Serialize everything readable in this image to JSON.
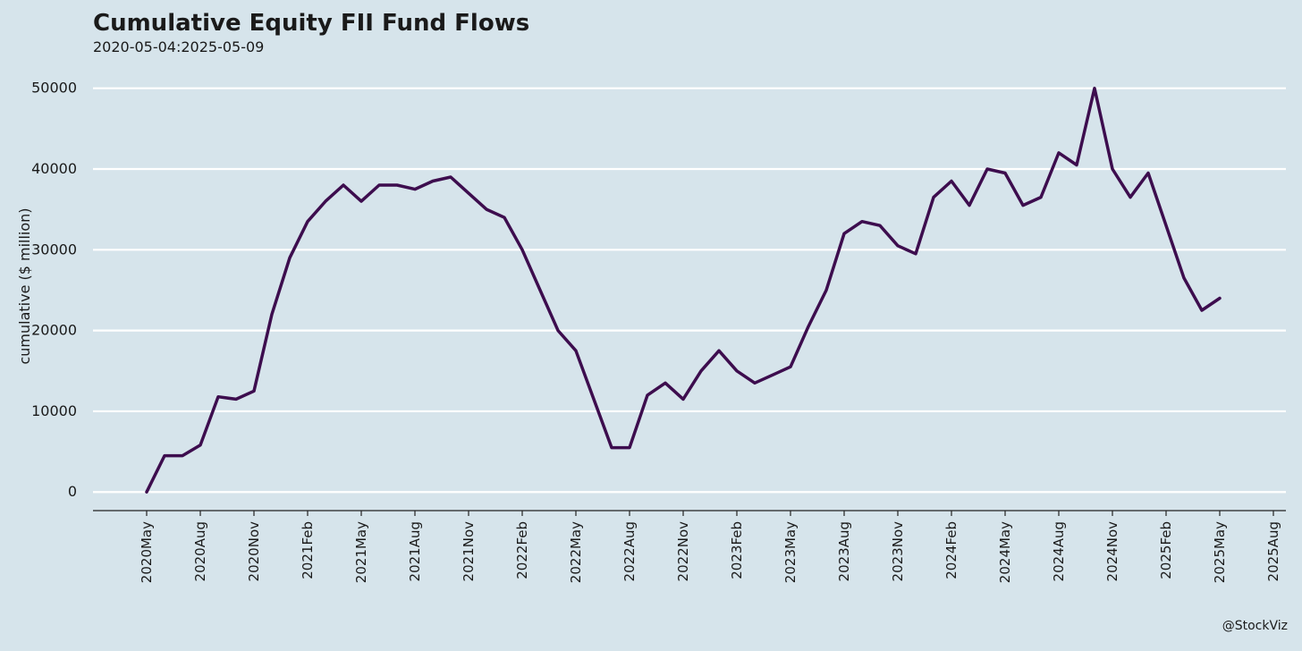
{
  "chart_data": {
    "type": "line",
    "title": "Cumulative Equity FII Fund Flows",
    "subtitle": "2020-05-04:2025-05-09",
    "y_label": "cumulative ($ million)",
    "caption": "@StockViz",
    "grid": true,
    "x": [
      "2020-05",
      "2020-06",
      "2020-07",
      "2020-08",
      "2020-09",
      "2020-10",
      "2020-11",
      "2020-12",
      "2021-01",
      "2021-02",
      "2021-03",
      "2021-04",
      "2021-05",
      "2021-06",
      "2021-07",
      "2021-08",
      "2021-09",
      "2021-10",
      "2021-11",
      "2021-12",
      "2022-01",
      "2022-02",
      "2022-03",
      "2022-04",
      "2022-05",
      "2022-06",
      "2022-07",
      "2022-08",
      "2022-09",
      "2022-10",
      "2022-11",
      "2022-12",
      "2023-01",
      "2023-02",
      "2023-03",
      "2023-04",
      "2023-05",
      "2023-06",
      "2023-07",
      "2023-08",
      "2023-09",
      "2023-10",
      "2023-11",
      "2023-12",
      "2024-01",
      "2024-02",
      "2024-03",
      "2024-04",
      "2024-05",
      "2024-06",
      "2024-07",
      "2024-08",
      "2024-09",
      "2024-10",
      "2024-11",
      "2024-12",
      "2025-01",
      "2025-02",
      "2025-03",
      "2025-04",
      "2025-05"
    ],
    "series": [
      {
        "name": "cumulative",
        "color": "#3d0d4e",
        "values": [
          0,
          4500,
          4500,
          5800,
          11800,
          11500,
          12500,
          22000,
          29000,
          33500,
          36000,
          38000,
          36000,
          38000,
          38000,
          37500,
          38500,
          39000,
          37000,
          35000,
          34000,
          30000,
          25000,
          20000,
          17500,
          11500,
          5500,
          5500,
          12000,
          13500,
          11500,
          15000,
          17500,
          15000,
          13500,
          14500,
          15500,
          20500,
          25000,
          32000,
          33500,
          33000,
          30500,
          29500,
          36500,
          38500,
          35500,
          40000,
          39500,
          35500,
          36500,
          42000,
          40500,
          50000,
          40000,
          36500,
          39500,
          33000,
          26500,
          22500,
          24000
        ]
      }
    ],
    "xlim": [
      "2020-02",
      "2025-09"
    ],
    "xticks": [
      {
        "value": "2020-05",
        "label": "2020May"
      },
      {
        "value": "2020-08",
        "label": "2020Aug"
      },
      {
        "value": "2020-11",
        "label": "2020Nov"
      },
      {
        "value": "2021-02",
        "label": "2021Feb"
      },
      {
        "value": "2021-05",
        "label": "2021May"
      },
      {
        "value": "2021-08",
        "label": "2021Aug"
      },
      {
        "value": "2021-11",
        "label": "2021Nov"
      },
      {
        "value": "2022-02",
        "label": "2022Feb"
      },
      {
        "value": "2022-05",
        "label": "2022May"
      },
      {
        "value": "2022-08",
        "label": "2022Aug"
      },
      {
        "value": "2022-11",
        "label": "2022Nov"
      },
      {
        "value": "2023-02",
        "label": "2023Feb"
      },
      {
        "value": "2023-05",
        "label": "2023May"
      },
      {
        "value": "2023-08",
        "label": "2023Aug"
      },
      {
        "value": "2023-11",
        "label": "2023Nov"
      },
      {
        "value": "2024-02",
        "label": "2024Feb"
      },
      {
        "value": "2024-05",
        "label": "2024May"
      },
      {
        "value": "2024-08",
        "label": "2024Aug"
      },
      {
        "value": "2024-11",
        "label": "2024Nov"
      },
      {
        "value": "2025-02",
        "label": "2025Feb"
      },
      {
        "value": "2025-05",
        "label": "2025May"
      },
      {
        "value": "2025-08",
        "label": "2025Aug"
      }
    ],
    "ylim": [
      -2300,
      52400
    ],
    "yticks": [
      0,
      10000,
      20000,
      30000,
      40000,
      50000
    ]
  }
}
